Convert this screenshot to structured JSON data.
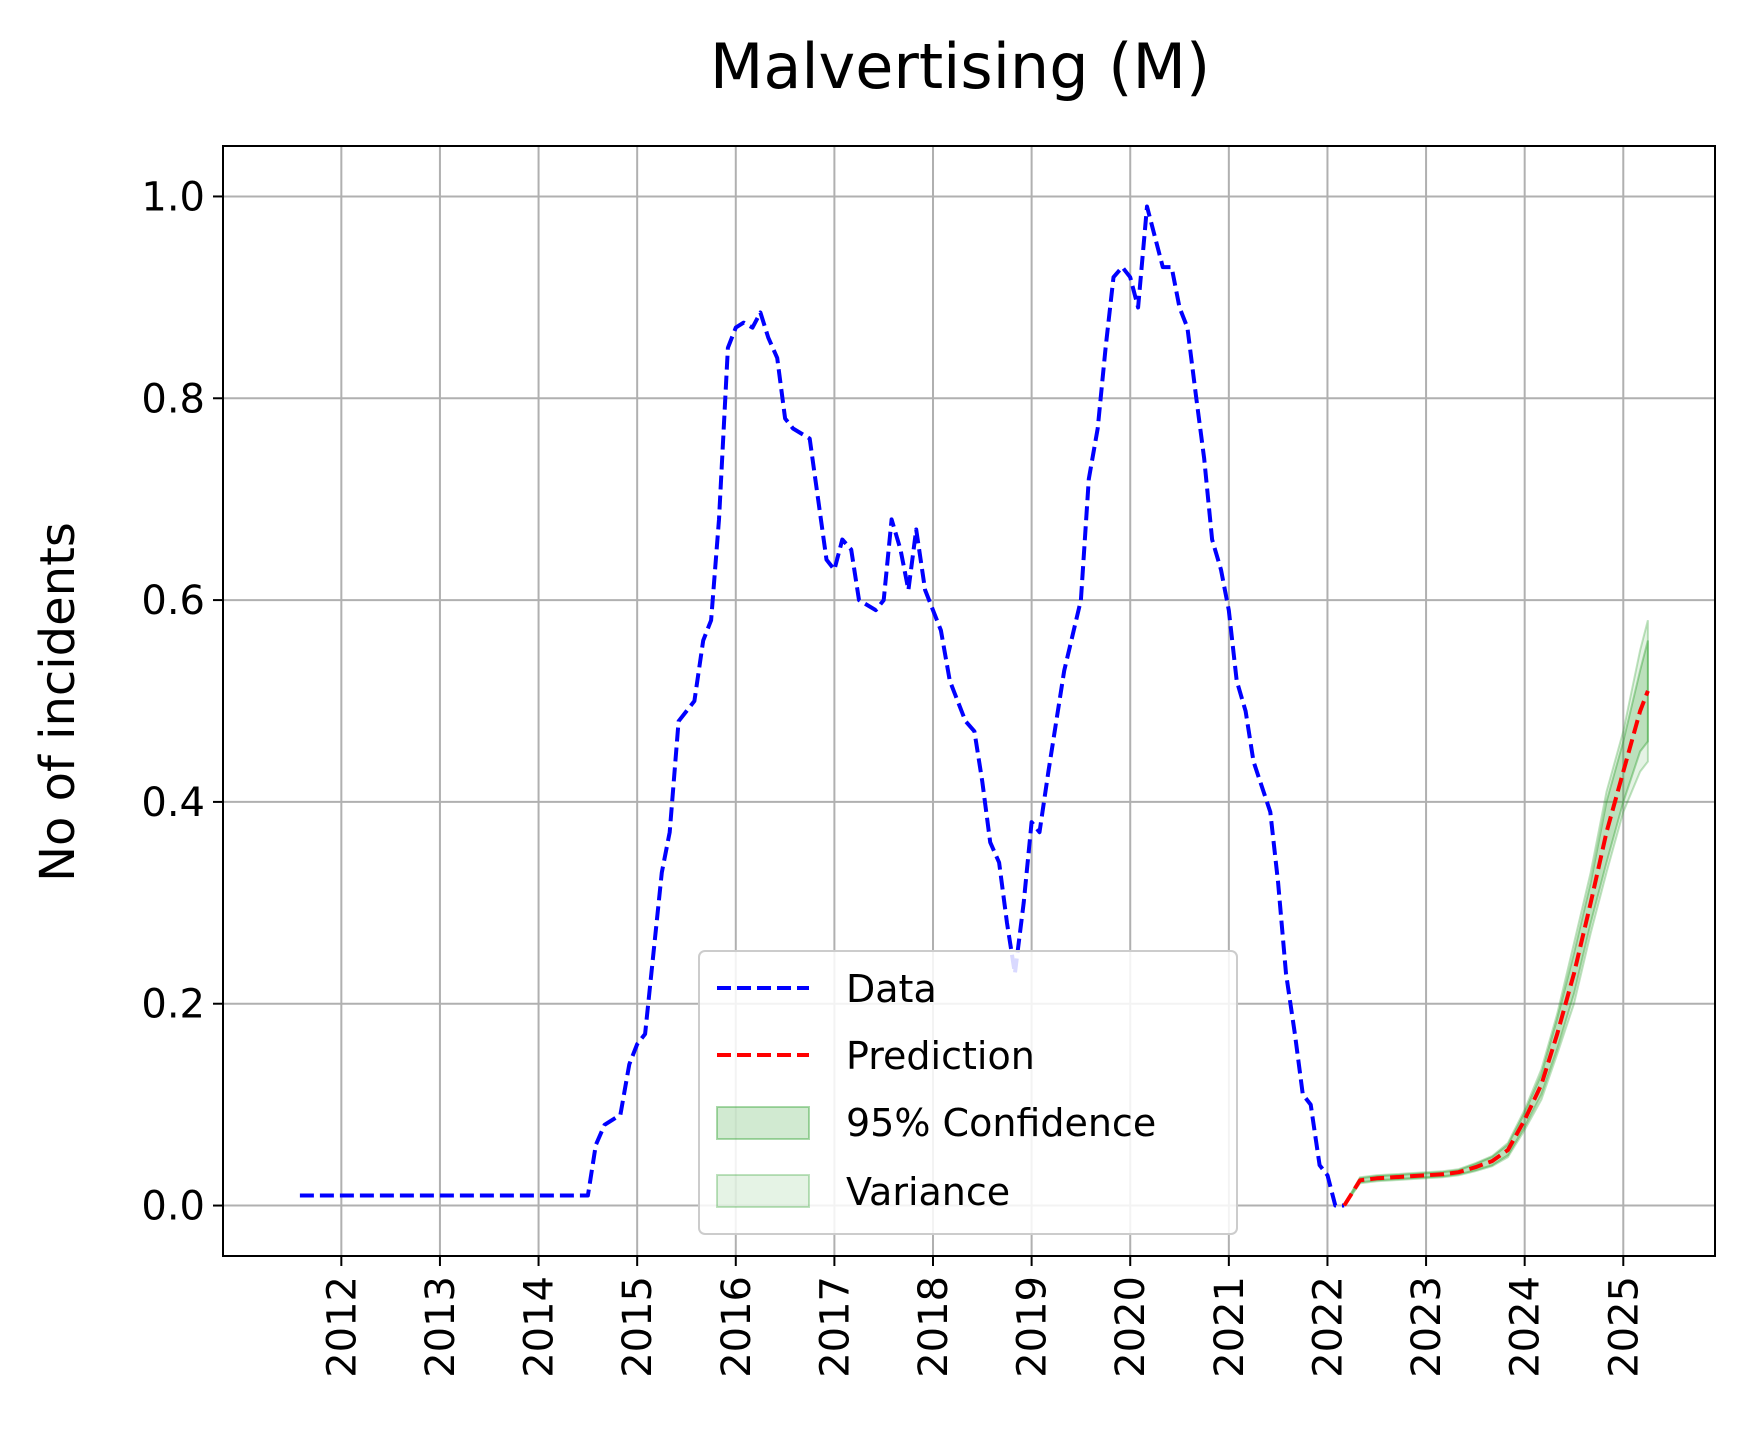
{
  "chart_data": {
    "type": "line",
    "title": "Malvertising (M)",
    "xlabel": "",
    "ylabel": "No of incidents",
    "xlim": [
      2010.8,
      2025.93
    ],
    "ylim": [
      -0.05,
      1.05
    ],
    "grid": true,
    "legend_position": "lower center",
    "x_ticks": [
      "2012",
      "2013",
      "2014",
      "2015",
      "2016",
      "2017",
      "2018",
      "2019",
      "2020",
      "2021",
      "2022",
      "2023",
      "2024",
      "2025"
    ],
    "y_ticks": [
      "0.0",
      "0.2",
      "0.4",
      "0.6",
      "0.8",
      "1.0"
    ],
    "colors": {
      "data": "#0000ff",
      "prediction": "#ff0000",
      "confidence": "#2ca02c",
      "variance": "#2ca02c"
    },
    "series": [
      {
        "name": "Data",
        "style": "dashed",
        "x": [
          2011.58,
          2014.5,
          2014.58,
          2014.67,
          2014.83,
          2014.92,
          2015.0,
          2015.08,
          2015.25,
          2015.33,
          2015.42,
          2015.58,
          2015.67,
          2015.75,
          2015.83,
          2015.92,
          2016.0,
          2016.08,
          2016.17,
          2016.25,
          2016.33,
          2016.42,
          2016.5,
          2016.58,
          2016.75,
          2016.92,
          2017.0,
          2017.08,
          2017.17,
          2017.25,
          2017.42,
          2017.5,
          2017.58,
          2017.67,
          2017.75,
          2017.83,
          2017.92,
          2018.08,
          2018.17,
          2018.33,
          2018.42,
          2018.5,
          2018.58,
          2018.67,
          2018.75,
          2018.83,
          2018.92,
          2019.0,
          2019.08,
          2019.17,
          2019.33,
          2019.5,
          2019.58,
          2019.67,
          2019.75,
          2019.83,
          2019.92,
          2020.0,
          2020.08,
          2020.17,
          2020.25,
          2020.33,
          2020.42,
          2020.5,
          2020.58,
          2020.67,
          2020.75,
          2020.83,
          2020.92,
          2021.0,
          2021.08,
          2021.17,
          2021.25,
          2021.42,
          2021.5,
          2021.58,
          2021.67,
          2021.75,
          2021.83,
          2021.92,
          2022.0,
          2022.08,
          2022.17
        ],
        "y": [
          0.01,
          0.01,
          0.06,
          0.08,
          0.09,
          0.14,
          0.16,
          0.17,
          0.33,
          0.37,
          0.48,
          0.5,
          0.56,
          0.58,
          0.68,
          0.85,
          0.87,
          0.875,
          0.87,
          0.885,
          0.86,
          0.84,
          0.78,
          0.77,
          0.76,
          0.64,
          0.63,
          0.66,
          0.65,
          0.6,
          0.59,
          0.6,
          0.68,
          0.65,
          0.61,
          0.67,
          0.61,
          0.57,
          0.52,
          0.48,
          0.47,
          0.42,
          0.36,
          0.34,
          0.28,
          0.23,
          0.3,
          0.38,
          0.37,
          0.43,
          0.53,
          0.6,
          0.72,
          0.77,
          0.85,
          0.92,
          0.93,
          0.92,
          0.89,
          0.99,
          0.96,
          0.93,
          0.93,
          0.89,
          0.87,
          0.8,
          0.74,
          0.66,
          0.63,
          0.59,
          0.52,
          0.49,
          0.44,
          0.39,
          0.32,
          0.23,
          0.17,
          0.11,
          0.1,
          0.04,
          0.03,
          0.0,
          0.0
        ]
      },
      {
        "name": "Prediction",
        "style": "dashed",
        "x": [
          2022.17,
          2022.33,
          2022.5,
          2022.67,
          2022.83,
          2023.0,
          2023.17,
          2023.33,
          2023.5,
          2023.67,
          2023.83,
          2024.0,
          2024.17,
          2024.33,
          2024.5,
          2024.67,
          2024.83,
          2025.0,
          2025.17,
          2025.25
        ],
        "y": [
          0.0,
          0.025,
          0.027,
          0.028,
          0.029,
          0.03,
          0.031,
          0.033,
          0.038,
          0.044,
          0.055,
          0.085,
          0.12,
          0.17,
          0.23,
          0.3,
          0.37,
          0.43,
          0.49,
          0.51
        ]
      }
    ],
    "bands": [
      {
        "name": "95% Confidence",
        "x": [
          2022.17,
          2022.33,
          2022.5,
          2022.67,
          2022.83,
          2023.0,
          2023.17,
          2023.33,
          2023.5,
          2023.67,
          2023.83,
          2024.0,
          2024.17,
          2024.33,
          2024.5,
          2024.67,
          2024.83,
          2025.0,
          2025.17,
          2025.25
        ],
        "low": [
          0.0,
          0.023,
          0.025,
          0.026,
          0.027,
          0.028,
          0.029,
          0.031,
          0.035,
          0.04,
          0.05,
          0.078,
          0.11,
          0.155,
          0.21,
          0.28,
          0.34,
          0.4,
          0.45,
          0.46
        ],
        "high": [
          0.0,
          0.027,
          0.029,
          0.03,
          0.031,
          0.032,
          0.033,
          0.035,
          0.041,
          0.048,
          0.06,
          0.092,
          0.13,
          0.185,
          0.25,
          0.32,
          0.4,
          0.46,
          0.53,
          0.56
        ]
      },
      {
        "name": "Variance",
        "x": [
          2022.17,
          2022.33,
          2022.5,
          2022.67,
          2022.83,
          2023.0,
          2023.17,
          2023.33,
          2023.5,
          2023.67,
          2023.83,
          2024.0,
          2024.17,
          2024.33,
          2024.5,
          2024.67,
          2024.83,
          2025.0,
          2025.17,
          2025.25
        ],
        "low": [
          0.0,
          0.022,
          0.024,
          0.025,
          0.026,
          0.027,
          0.028,
          0.03,
          0.034,
          0.039,
          0.048,
          0.075,
          0.105,
          0.15,
          0.2,
          0.27,
          0.33,
          0.39,
          0.43,
          0.44
        ],
        "high": [
          0.0,
          0.028,
          0.03,
          0.031,
          0.032,
          0.033,
          0.034,
          0.036,
          0.042,
          0.049,
          0.062,
          0.095,
          0.135,
          0.19,
          0.26,
          0.33,
          0.41,
          0.47,
          0.55,
          0.58
        ]
      }
    ]
  }
}
